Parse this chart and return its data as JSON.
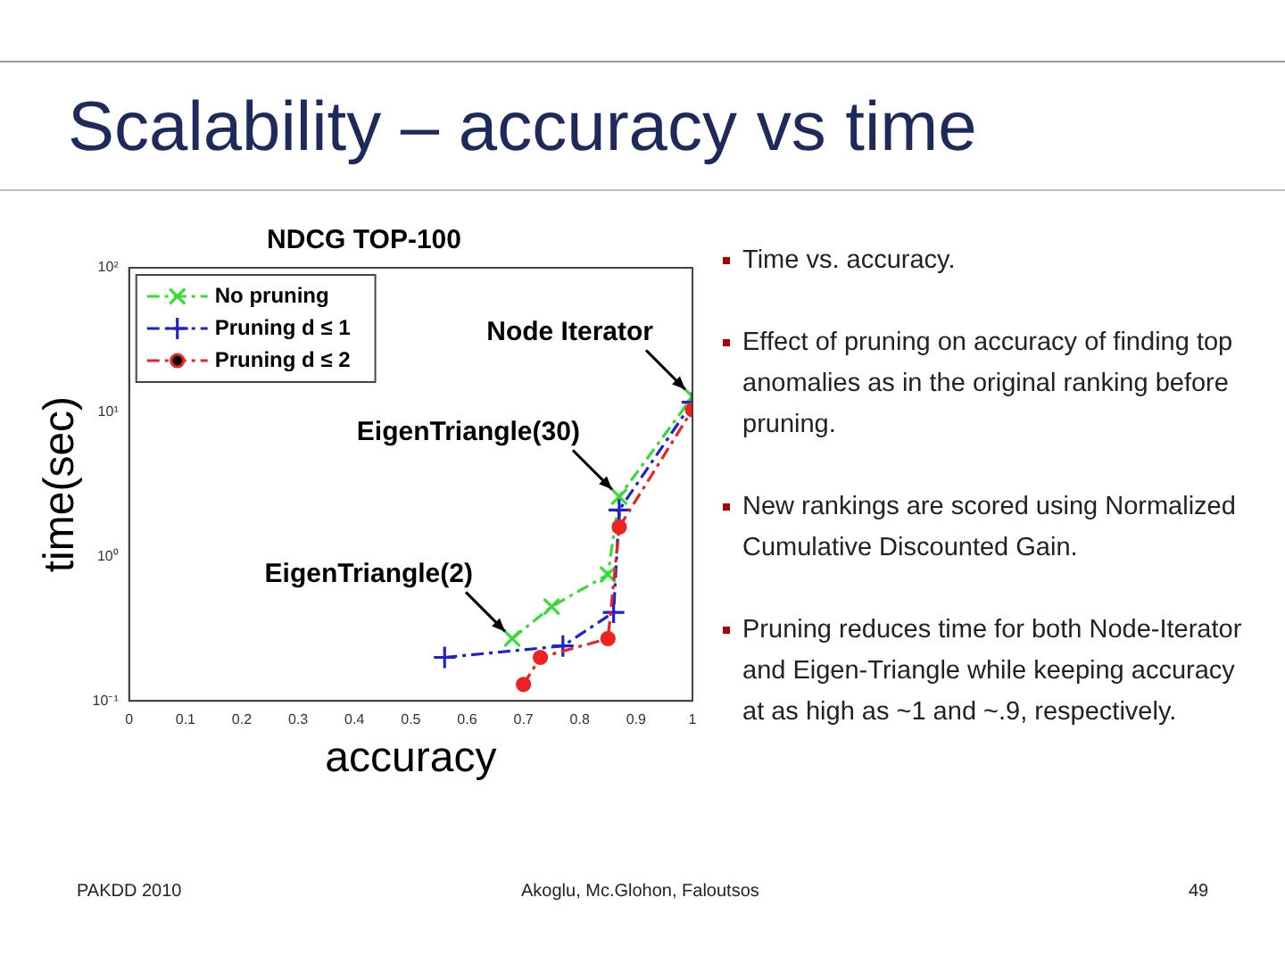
{
  "chart_data": {
    "type": "line",
    "title": "Scalability – accuracy vs time",
    "subtitle": "NDCG TOP-100",
    "xlabel": "accuracy",
    "ylabel": "time(sec)",
    "series": [
      {
        "name": "No pruning",
        "color": "#33dd33",
        "marker": "cross",
        "x": [
          0.68,
          0.75,
          0.85,
          0.87,
          1.0
        ],
        "values": [
          0.27,
          0.45,
          0.75,
          2.6,
          12.8
        ]
      },
      {
        "name": "Pruning d ≤ 1",
        "color": "#2222cc",
        "marker": "plus",
        "x": [
          0.56,
          0.77,
          0.86,
          0.87,
          1.0
        ],
        "values": [
          0.2,
          0.24,
          0.41,
          2.1,
          11.7
        ]
      },
      {
        "name": "Pruning d ≤ 2",
        "color": "#ee2222",
        "marker": "circle",
        "x": [
          0.7,
          0.73,
          0.85,
          0.87,
          1.0
        ],
        "values": [
          0.13,
          0.2,
          0.27,
          1.6,
          10.4
        ]
      }
    ],
    "xlim": [
      0,
      1
    ],
    "xticks": [
      0,
      0.1,
      0.2,
      0.3,
      0.4,
      0.5,
      0.6,
      0.7,
      0.8,
      0.9,
      1
    ],
    "ylim": [
      0.1,
      100
    ],
    "yticks": [
      {
        "value": 0.1,
        "label": "10⁻¹"
      },
      {
        "value": 1,
        "label": "10⁰"
      },
      {
        "value": 10,
        "label": "10¹"
      },
      {
        "value": 100,
        "label": "10²"
      }
    ],
    "log": "y",
    "grid": false,
    "legend": "top left",
    "line_style": "dashed",
    "annotations": [
      {
        "text": "Node Iterator",
        "x": 1.0,
        "y": 12.8
      },
      {
        "text": "EigenTriangle(30)",
        "x": 0.87,
        "y": 2.6
      },
      {
        "text": "EigenTriangle(2)",
        "x": 0.68,
        "y": 0.27
      },
      "Time vs. accuracy.",
      "Effect of pruning on accuracy of finding top anomalies as in the original ranking before pruning.",
      "New rankings are scored using Normalized Cumulative Discounted Gain.",
      "Pruning reduces time for both Node-Iterator and Eigen-Triangle while keeping accuracy at as high as ~1 and ~.9, respectively.",
      "PAKDD 2010",
      "Akoglu, Mc.Glohon, Faloutsos",
      "49"
    ]
  }
}
